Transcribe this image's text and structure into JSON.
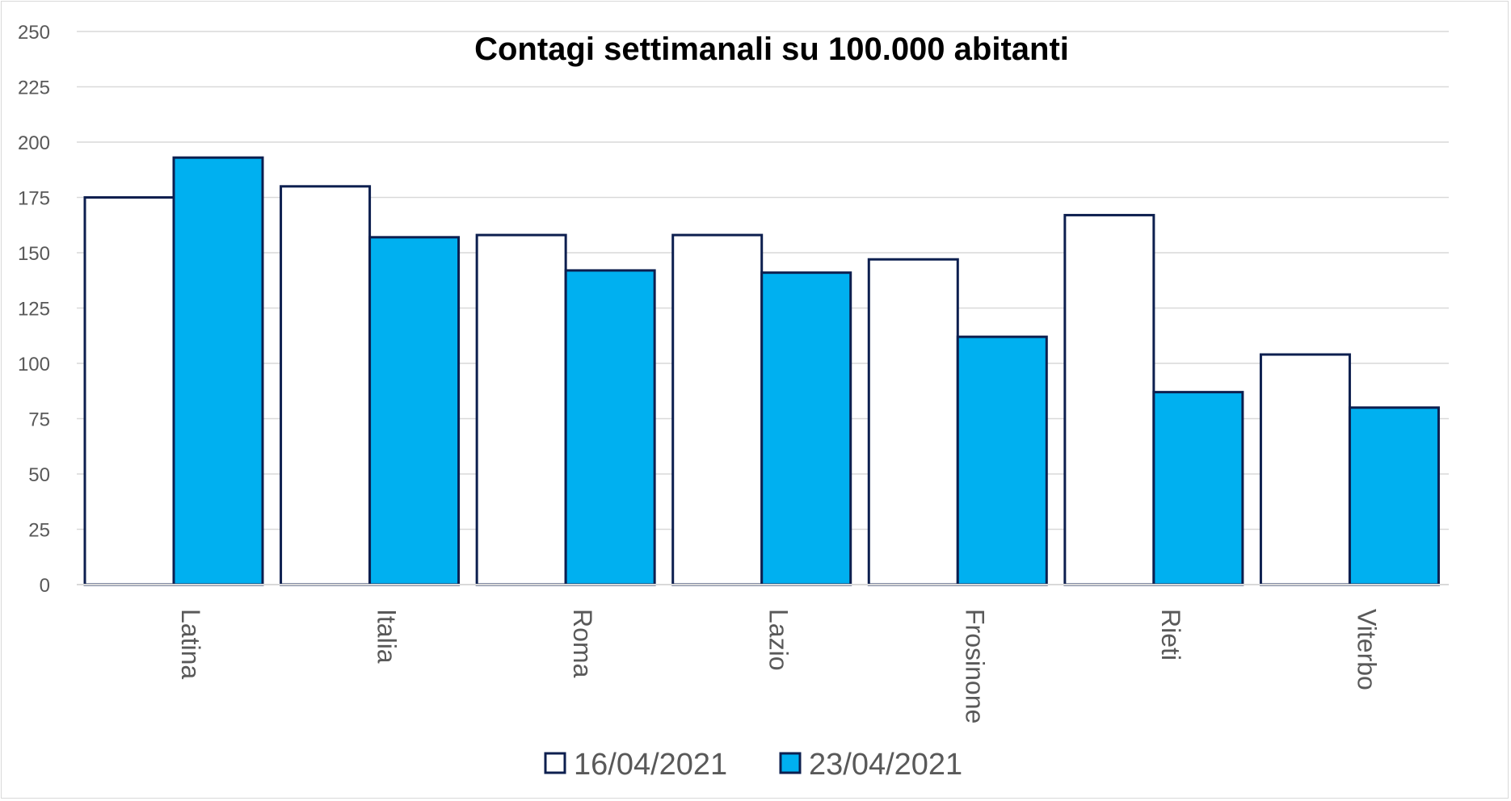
{
  "chart_data": {
    "type": "bar",
    "title": "Contagi settimanali su 100.000 abitanti",
    "xlabel": "",
    "ylabel": "",
    "ylim": [
      0,
      250
    ],
    "yticks": [
      0,
      25,
      50,
      75,
      100,
      125,
      150,
      175,
      200,
      225,
      250
    ],
    "grid": true,
    "legend_position": "bottom",
    "categories": [
      "Latina",
      "Italia",
      "Roma",
      "Lazio",
      "Frosinone",
      "Rieti",
      "Viterbo"
    ],
    "series": [
      {
        "name": "16/04/2021",
        "color": "#ffffff",
        "values": [
          175,
          180,
          158,
          158,
          147,
          167,
          104
        ]
      },
      {
        "name": "23/04/2021",
        "color": "#00b0f0",
        "values": [
          193,
          157,
          142,
          141,
          112,
          87,
          80
        ]
      }
    ],
    "bar_outline_color": "#0d1f4f",
    "grid_color": "#d9d9d9"
  }
}
